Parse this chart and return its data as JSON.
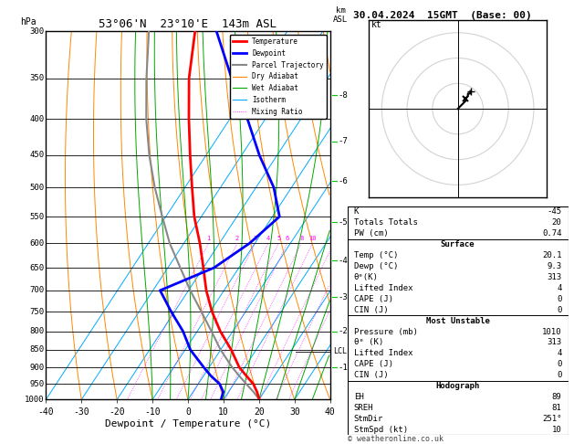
{
  "title_left": "53°06'N  23°10'E  143m ASL",
  "title_right": "30.04.2024  15GMT  (Base: 00)",
  "xlabel": "Dewpoint / Temperature (°C)",
  "pressure_levels": [
    300,
    350,
    400,
    450,
    500,
    550,
    600,
    650,
    700,
    750,
    800,
    850,
    900,
    950,
    1000
  ],
  "pressure_major": [
    300,
    350,
    400,
    450,
    500,
    550,
    600,
    650,
    700,
    750,
    800,
    850,
    900,
    950,
    1000
  ],
  "p_min": 300,
  "p_max": 1000,
  "temp_min": -40,
  "temp_max": 40,
  "skew_factor": 0.85,
  "temp_profile": {
    "pressure": [
      1000,
      975,
      950,
      925,
      900,
      850,
      800,
      750,
      700,
      650,
      600,
      550,
      500,
      450,
      400,
      350,
      300
    ],
    "temperature": [
      20.1,
      18.0,
      15.5,
      12.0,
      8.5,
      3.0,
      -3.5,
      -9.5,
      -15.0,
      -20.0,
      -25.5,
      -32.0,
      -38.0,
      -44.5,
      -51.5,
      -59.0,
      -66.0
    ]
  },
  "dewpoint_profile": {
    "pressure": [
      1000,
      975,
      950,
      925,
      900,
      850,
      800,
      750,
      700,
      650,
      600,
      550,
      500,
      450,
      400,
      350,
      300
    ],
    "temperature": [
      9.3,
      8.5,
      6.0,
      2.0,
      -1.5,
      -8.5,
      -14.0,
      -21.0,
      -28.0,
      -17.0,
      -11.5,
      -8.0,
      -15.0,
      -25.0,
      -35.0,
      -47.0,
      -60.0
    ]
  },
  "parcel_profile": {
    "pressure": [
      1000,
      975,
      950,
      925,
      900,
      850,
      800,
      750,
      700,
      650,
      600,
      550,
      500,
      450,
      400,
      350,
      300
    ],
    "temperature": [
      20.1,
      17.0,
      13.5,
      10.0,
      6.5,
      0.0,
      -6.0,
      -12.5,
      -19.5,
      -26.5,
      -34.0,
      -41.0,
      -48.5,
      -56.0,
      -63.5,
      -71.0,
      -79.0
    ]
  },
  "lcl_pressure": 855,
  "mixing_ratio_lines": [
    1,
    2,
    3,
    4,
    5,
    6,
    8,
    10,
    15,
    20,
    25
  ],
  "km_p_approx": {
    "1": 900,
    "2": 800,
    "3": 715,
    "4": 635,
    "5": 560,
    "6": 490,
    "7": 430,
    "8": 370
  },
  "stats": {
    "K": -45,
    "Totals_Totals": 20,
    "PW_cm": 0.74,
    "Surface_Temp": 20.1,
    "Surface_Dewp": 9.3,
    "Surface_theta_e": 313,
    "Surface_LI": 4,
    "Surface_CAPE": 0,
    "Surface_CIN": 0,
    "MU_Pressure": 1010,
    "MU_theta_e": 313,
    "MU_LI": 4,
    "MU_CAPE": 0,
    "MU_CIN": 0,
    "EH": 89,
    "SREH": 81,
    "StmDir": 251,
    "StmSpd": 10
  },
  "colors": {
    "temperature": "#ff0000",
    "dewpoint": "#0000ff",
    "parcel": "#888888",
    "dry_adiabat": "#ff8800",
    "wet_adiabat": "#00aa00",
    "isotherm": "#00aaff",
    "mixing_ratio": "#ff00ff",
    "background": "#ffffff",
    "km_tick": "#00cc00"
  },
  "isotherm_values": [
    -40,
    -30,
    -20,
    -10,
    0,
    10,
    20,
    30,
    40
  ],
  "dry_adiabat_values": [
    -30,
    -20,
    -10,
    0,
    10,
    20,
    30,
    40,
    50,
    60,
    70,
    80,
    90,
    100,
    110,
    120
  ],
  "wet_adiabat_values": [
    -10,
    -5,
    0,
    5,
    10,
    15,
    20,
    25,
    30,
    35,
    40
  ]
}
